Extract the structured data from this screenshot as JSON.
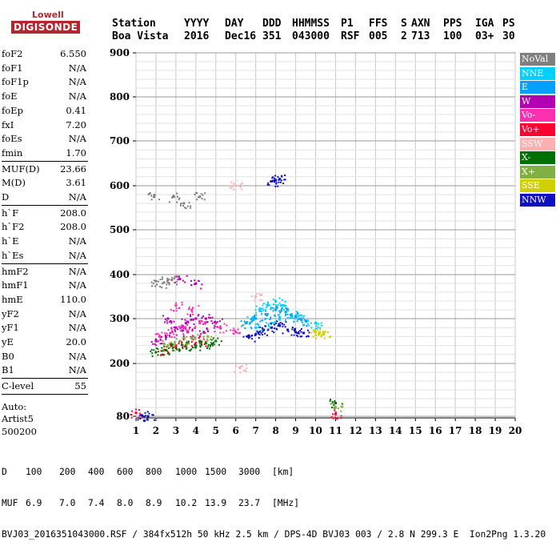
{
  "logo": {
    "line1": "Lowell",
    "line2": "DIGISONDE"
  },
  "header": {
    "row1": [
      "Station",
      "YYYY",
      "DAY",
      "DDD",
      "HHMMSS",
      "P1",
      "FFS",
      "S",
      "AXN",
      "PPS",
      "IGA",
      "PS"
    ],
    "row2": [
      "Boa Vista",
      "2016",
      "Dec16",
      "351",
      "043000",
      "RSF",
      "005",
      "2",
      "713",
      "100",
      "03+",
      "30"
    ]
  },
  "sidebar": {
    "group1": [
      {
        "label": "foF2",
        "value": "6.550"
      },
      {
        "label": "foF1",
        "value": "N/A"
      },
      {
        "label": "foF1p",
        "value": "N/A"
      },
      {
        "label": "foE",
        "value": "N/A"
      },
      {
        "label": "foEp",
        "value": "0.41"
      },
      {
        "label": "fxI",
        "value": "7.20"
      },
      {
        "label": "foEs",
        "value": "N/A"
      },
      {
        "label": "fmin",
        "value": "1.70"
      }
    ],
    "group2": [
      {
        "label": "MUF(D)",
        "value": "23.66"
      },
      {
        "label": "M(D)",
        "value": "3.61"
      },
      {
        "label": "D",
        "value": "N/A"
      }
    ],
    "group3": [
      {
        "label": "h`F",
        "value": "208.0"
      },
      {
        "label": "h`F2",
        "value": "208.0"
      },
      {
        "label": "h`E",
        "value": "N/A"
      },
      {
        "label": "h`Es",
        "value": "N/A"
      }
    ],
    "group4": [
      {
        "label": "hmF2",
        "value": "N/A"
      },
      {
        "label": "hmF1",
        "value": "N/A"
      },
      {
        "label": "hmE",
        "value": "110.0"
      },
      {
        "label": "yF2",
        "value": "N/A"
      },
      {
        "label": "yF1",
        "value": "N/A"
      },
      {
        "label": "yE",
        "value": "20.0"
      },
      {
        "label": "B0",
        "value": "N/A"
      },
      {
        "label": "B1",
        "value": "N/A"
      }
    ],
    "group5": [
      {
        "label": "C-level",
        "value": "55"
      }
    ],
    "auto": [
      "Auto:",
      "Artist5",
      "500200"
    ]
  },
  "legend": [
    {
      "label": "NoVal",
      "color": "#808080"
    },
    {
      "label": "NNE",
      "color": "#00d0ff"
    },
    {
      "label": "E",
      "color": "#00a0ff"
    },
    {
      "label": "W",
      "color": "#b000b0"
    },
    {
      "label": "Vo-",
      "color": "#ff30b0"
    },
    {
      "label": "Vo+",
      "color": "#ff0030"
    },
    {
      "label": "SSW",
      "color": "#ffb0b0"
    },
    {
      "label": "X-",
      "color": "#007000"
    },
    {
      "label": "X+",
      "color": "#80b040"
    },
    {
      "label": "SSE",
      "color": "#d0d000"
    },
    {
      "label": "NNW",
      "color": "#1010c0"
    }
  ],
  "chart_data": {
    "type": "scatter",
    "title": "",
    "xlabel": "",
    "ylabel": "",
    "xlim": [
      1,
      20
    ],
    "ylim": [
      80,
      900
    ],
    "xticks": [
      1,
      2,
      3,
      4,
      5,
      6,
      7,
      8,
      9,
      10,
      11,
      12,
      13,
      14,
      15,
      16,
      17,
      18,
      19,
      20
    ],
    "yticks": [
      80,
      200,
      300,
      400,
      500,
      600,
      700,
      800,
      900
    ],
    "grid": true,
    "series": [
      {
        "name": "NNE",
        "color": "#00d0ff",
        "points": [
          [
            6.8,
            300
          ],
          [
            7.2,
            320
          ],
          [
            7.6,
            330
          ],
          [
            8.0,
            340
          ],
          [
            8.4,
            330
          ],
          [
            8.8,
            310
          ],
          [
            9.2,
            300
          ],
          [
            9.6,
            295
          ],
          [
            10.0,
            290
          ],
          [
            7.0,
            280
          ],
          [
            7.8,
            290
          ],
          [
            8.2,
            300
          ]
        ]
      },
      {
        "name": "E",
        "color": "#00a0ff",
        "points": [
          [
            6.5,
            290
          ],
          [
            7.0,
            300
          ],
          [
            7.5,
            310
          ],
          [
            8.0,
            320
          ],
          [
            8.5,
            315
          ],
          [
            9.0,
            305
          ],
          [
            9.5,
            295
          ]
        ]
      },
      {
        "name": "W",
        "color": "#b000b0",
        "points": [
          [
            2.0,
            250
          ],
          [
            2.5,
            260
          ],
          [
            3.0,
            280
          ],
          [
            3.5,
            290
          ],
          [
            4.0,
            300
          ],
          [
            4.5,
            300
          ],
          [
            5.0,
            290
          ],
          [
            3.2,
            390
          ],
          [
            4.0,
            380
          ],
          [
            2.6,
            300
          ],
          [
            3.6,
            270
          ],
          [
            4.4,
            270
          ]
        ]
      },
      {
        "name": "Vo-",
        "color": "#ff30b0",
        "points": [
          [
            2.2,
            260
          ],
          [
            2.8,
            270
          ],
          [
            3.4,
            280
          ],
          [
            4.2,
            290
          ],
          [
            5.2,
            280
          ],
          [
            6.0,
            270
          ],
          [
            3.0,
            330
          ],
          [
            3.8,
            320
          ]
        ]
      },
      {
        "name": "Vo+",
        "color": "#ff0030",
        "points": [
          [
            1.0,
            88
          ],
          [
            11.0,
            85
          ],
          [
            2.4,
            230
          ],
          [
            3.0,
            240
          ],
          [
            3.6,
            245
          ],
          [
            4.2,
            250
          ]
        ]
      },
      {
        "name": "SSW",
        "color": "#ffb0b0",
        "points": [
          [
            6.0,
            600
          ],
          [
            6.2,
            190
          ],
          [
            7.0,
            350
          ]
        ]
      },
      {
        "name": "X-",
        "color": "#007000",
        "points": [
          [
            2.0,
            225
          ],
          [
            2.5,
            230
          ],
          [
            3.0,
            235
          ],
          [
            3.5,
            240
          ],
          [
            4.0,
            240
          ],
          [
            4.5,
            245
          ],
          [
            5.0,
            250
          ],
          [
            11.0,
            110
          ]
        ]
      },
      {
        "name": "X+",
        "color": "#80b040",
        "points": [
          [
            2.6,
            240
          ],
          [
            3.2,
            250
          ],
          [
            3.8,
            255
          ],
          [
            4.6,
            260
          ],
          [
            11.0,
            100
          ]
        ]
      },
      {
        "name": "SSE",
        "color": "#d0d000",
        "points": [
          [
            10.0,
            270
          ],
          [
            10.2,
            268
          ],
          [
            10.4,
            265
          ]
        ]
      },
      {
        "name": "NNW",
        "color": "#1010c0",
        "points": [
          [
            6.6,
            260
          ],
          [
            7.0,
            265
          ],
          [
            7.4,
            275
          ],
          [
            7.8,
            280
          ],
          [
            8.2,
            285
          ],
          [
            8.6,
            275
          ],
          [
            9.0,
            270
          ],
          [
            9.4,
            268
          ],
          [
            7.8,
            610
          ],
          [
            8.0,
            612
          ],
          [
            8.2,
            615
          ],
          [
            1.3,
            82
          ],
          [
            1.6,
            80
          ]
        ]
      },
      {
        "name": "NoVal",
        "color": "#808080",
        "points": [
          [
            2.0,
            385
          ],
          [
            2.4,
            382
          ],
          [
            2.8,
            388
          ],
          [
            3.4,
            560
          ],
          [
            4.2,
            575
          ],
          [
            2.9,
            575
          ],
          [
            1.9,
            575
          ]
        ]
      }
    ]
  },
  "footer": {
    "d_label": "D",
    "d_values": [
      "100",
      "200",
      "400",
      "600",
      "800",
      "1000",
      "1500",
      "3000",
      "[km]"
    ],
    "muf_label": "MUF",
    "muf_values": [
      "6.9",
      "7.0",
      "7.4",
      "8.0",
      "8.9",
      "10.2",
      "13.9",
      "23.7",
      "[MHz]"
    ],
    "file_line": "BVJ03_2016351043000.RSF / 384fx512h 50 kHz 2.5 km / DPS-4D BVJ03 003 / 2.8 N 299.3 E  Ion2Png 1.3.20"
  }
}
